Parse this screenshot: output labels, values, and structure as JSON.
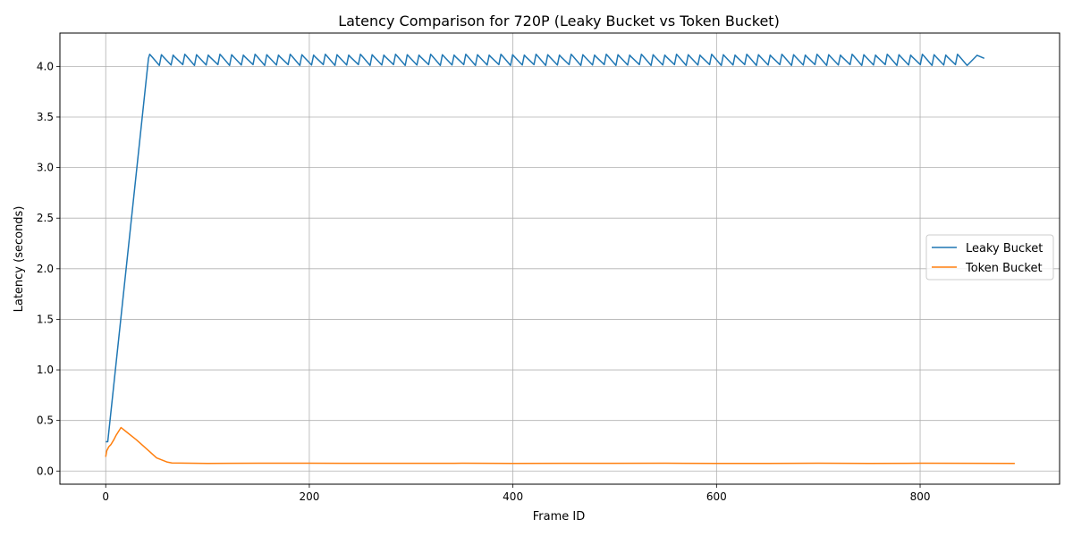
{
  "chart_data": {
    "type": "line",
    "title": "Latency Comparison for 720P (Leaky Bucket vs Token Bucket)",
    "xlabel": "Frame ID",
    "ylabel": "Latency (seconds)",
    "xlim": [
      -45,
      937
    ],
    "ylim": [
      -0.13,
      4.33
    ],
    "x_ticks": [
      0,
      200,
      400,
      600,
      800
    ],
    "x_tick_labels": [
      "0",
      "200",
      "400",
      "600",
      "800"
    ],
    "y_ticks": [
      0.0,
      0.5,
      1.0,
      1.5,
      2.0,
      2.5,
      3.0,
      3.5,
      4.0
    ],
    "y_tick_labels": [
      "0.0",
      "0.5",
      "1.0",
      "1.5",
      "2.0",
      "2.5",
      "3.0",
      "3.5",
      "4.0"
    ],
    "grid": true,
    "legend_position": "right",
    "series": [
      {
        "name": "Leaky Bucket",
        "color": "#1f77b4",
        "ramp": {
          "x": [
            0,
            2,
            42
          ],
          "y": [
            0.29,
            0.29,
            4.08
          ]
        },
        "sawtooth": {
          "start": 42,
          "end": 856,
          "period": 11.5,
          "high": 4.12,
          "low": 4.01
        },
        "tail": {
          "x": [
            856,
            863
          ],
          "y": [
            4.11,
            4.08
          ]
        }
      },
      {
        "name": "Token Bucket",
        "color": "#ff7f0e",
        "x": [
          0,
          1,
          3,
          5,
          8,
          10,
          15,
          20,
          30,
          40,
          50,
          60,
          65,
          100,
          150,
          200,
          250,
          300,
          350,
          400,
          450,
          500,
          550,
          600,
          650,
          700,
          750,
          800,
          850,
          893
        ],
        "y": [
          0.14,
          0.2,
          0.24,
          0.26,
          0.31,
          0.35,
          0.43,
          0.39,
          0.31,
          0.22,
          0.13,
          0.09,
          0.08,
          0.075,
          0.078,
          0.077,
          0.076,
          0.076,
          0.077,
          0.075,
          0.076,
          0.076,
          0.077,
          0.075,
          0.075,
          0.077,
          0.075,
          0.077,
          0.076,
          0.075
        ]
      }
    ]
  }
}
